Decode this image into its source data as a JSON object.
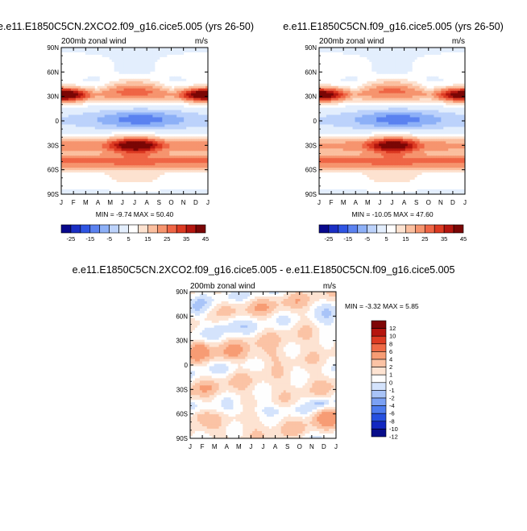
{
  "panels": [
    {
      "id": "top-left",
      "title": "e.e11.E1850C5CN.2XCO2.f09_g16.cice5.005 (yrs 26-50)",
      "subtitle_left": "200mb zonal wind",
      "subtitle_right": "m/s",
      "stats": "MIN = -9.74 MAX = 50.40",
      "jet_north_jan": 47,
      "jet_south_jul": 45
    },
    {
      "id": "top-right",
      "title": "e.e11.E1850C5CN.f09_g16.cice5.005 (yrs 26-50)",
      "subtitle_left": "200mb zonal wind",
      "subtitle_right": "m/s",
      "stats": "MIN = -10.05 MAX = 47.60",
      "jet_north_jan": 44,
      "jet_south_jul": 43
    },
    {
      "id": "bottom-diff",
      "title": "e.e11.E1850C5CN.2XCO2.f09_g16.cice5.005 - e.e11.E1850C5CN.f09_g16.cice5.005",
      "subtitle_left": "200mb zonal wind",
      "subtitle_right": "m/s",
      "stats": "MIN =  -3.32 MAX =   5.85"
    }
  ],
  "chart_data": [
    {
      "type": "heatmap",
      "title": "e.e11.E1850C5CN.2XCO2.f09_g16.cice5.005 (yrs 26-50)",
      "subtitle": "200mb zonal wind",
      "units": "m/s",
      "x_categories": [
        "J",
        "F",
        "M",
        "A",
        "M",
        "J",
        "J",
        "A",
        "S",
        "O",
        "N",
        "D",
        "J"
      ],
      "y_ticks": [
        "90N",
        "60N",
        "30N",
        "0",
        "30S",
        "60S",
        "90S"
      ],
      "ylim": [
        -90,
        90
      ],
      "min": -9.74,
      "max": 50.4,
      "colorbar_levels": [
        -25,
        -20,
        -15,
        -10,
        -5,
        0,
        5,
        10,
        15,
        20,
        25,
        30,
        35,
        40,
        45
      ],
      "colorbar_labels": [
        "-25",
        "-15",
        "-5",
        "5",
        "15",
        "25",
        "35",
        "45"
      ]
    },
    {
      "type": "heatmap",
      "title": "e.e11.E1850C5CN.f09_g16.cice5.005 (yrs 26-50)",
      "subtitle": "200mb zonal wind",
      "units": "m/s",
      "x_categories": [
        "J",
        "F",
        "M",
        "A",
        "M",
        "J",
        "J",
        "A",
        "S",
        "O",
        "N",
        "D",
        "J"
      ],
      "y_ticks": [
        "90N",
        "60N",
        "30N",
        "0",
        "30S",
        "60S",
        "90S"
      ],
      "ylim": [
        -90,
        90
      ],
      "min": -10.05,
      "max": 47.6,
      "colorbar_levels": [
        -25,
        -20,
        -15,
        -10,
        -5,
        0,
        5,
        10,
        15,
        20,
        25,
        30,
        35,
        40,
        45
      ],
      "colorbar_labels": [
        "-25",
        "-15",
        "-5",
        "5",
        "15",
        "25",
        "35",
        "45"
      ]
    },
    {
      "type": "heatmap",
      "title": "e.e11.E1850C5CN.2XCO2.f09_g16.cice5.005 - e.e11.E1850C5CN.f09_g16.cice5.005",
      "subtitle": "200mb zonal wind",
      "units": "m/s",
      "x_categories": [
        "J",
        "F",
        "M",
        "A",
        "M",
        "J",
        "J",
        "A",
        "S",
        "O",
        "N",
        "D",
        "J"
      ],
      "y_ticks": [
        "90N",
        "60N",
        "30N",
        "0",
        "30S",
        "60S",
        "90S"
      ],
      "ylim": [
        -90,
        90
      ],
      "min": -3.32,
      "max": 5.85,
      "colorbar_levels": [
        -12,
        -10,
        -8,
        -6,
        -4,
        -2,
        -1,
        0,
        1,
        2,
        4,
        6,
        8,
        10,
        12
      ],
      "colorbar_labels": [
        "12",
        "10",
        "8",
        "6",
        "4",
        "2",
        "1",
        "0",
        "-1",
        "-2",
        "-4",
        "-6",
        "-8",
        "-10",
        "-12"
      ]
    }
  ],
  "colors": {
    "abs_palette": [
      "#08088c",
      "#1a2ec4",
      "#2f55e3",
      "#5b82f0",
      "#8db0f7",
      "#bcd2fb",
      "#e3eefd",
      "#ffffff",
      "#fde2d0",
      "#fbbf9f",
      "#f6946e",
      "#ef6545",
      "#dc3a22",
      "#b4160f",
      "#7a0605"
    ],
    "diff_palette": [
      "#080d8a",
      "#1227c0",
      "#2550e0",
      "#4d7cef",
      "#7ba1f4",
      "#a9c4f8",
      "#d4e3fc",
      "#fefefe",
      "#fde3d2",
      "#fbc3a5",
      "#f79c74",
      "#ef6a46",
      "#dd3b22",
      "#b5150e",
      "#7f0606"
    ]
  }
}
